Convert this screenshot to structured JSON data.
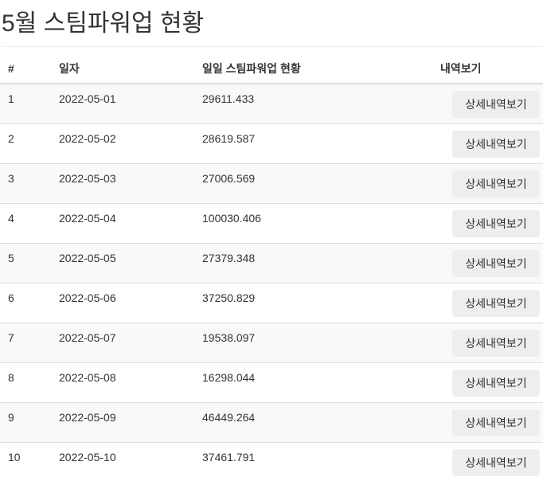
{
  "title": "5월 스팀파워업 현황",
  "table": {
    "headers": [
      "#",
      "일자",
      "일일 스팀파워업 현황",
      "내역보기"
    ],
    "button_label": "상세내역보기",
    "rows": [
      {
        "no": "1",
        "date": "2022-05-01",
        "value": "29611.433"
      },
      {
        "no": "2",
        "date": "2022-05-02",
        "value": "28619.587"
      },
      {
        "no": "3",
        "date": "2022-05-03",
        "value": "27006.569"
      },
      {
        "no": "4",
        "date": "2022-05-04",
        "value": "100030.406"
      },
      {
        "no": "5",
        "date": "2022-05-05",
        "value": "27379.348"
      },
      {
        "no": "6",
        "date": "2022-05-06",
        "value": "37250.829"
      },
      {
        "no": "7",
        "date": "2022-05-07",
        "value": "19538.097"
      },
      {
        "no": "8",
        "date": "2022-05-08",
        "value": "16298.044"
      },
      {
        "no": "9",
        "date": "2022-05-09",
        "value": "46449.264"
      },
      {
        "no": "10",
        "date": "2022-05-10",
        "value": "37461.791"
      }
    ]
  }
}
